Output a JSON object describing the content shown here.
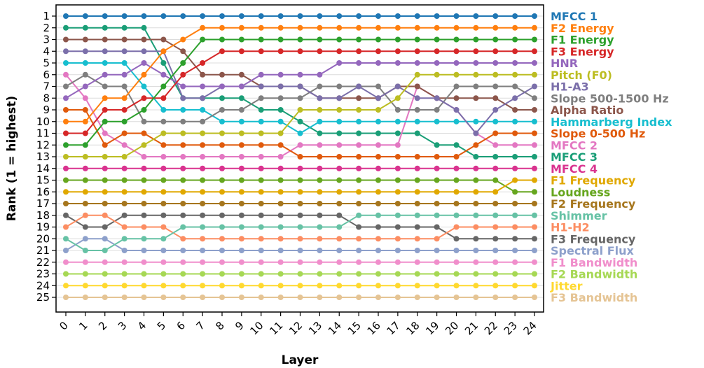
{
  "chart_data": {
    "type": "line",
    "title": "",
    "xlabel": "Layer",
    "ylabel": "Rank (1 = highest)",
    "x": [
      0,
      1,
      2,
      3,
      4,
      5,
      6,
      7,
      8,
      9,
      10,
      11,
      12,
      13,
      14,
      15,
      16,
      17,
      18,
      19,
      20,
      21,
      22,
      23,
      24
    ],
    "xlim": [
      0,
      24
    ],
    "ylim": [
      1,
      25
    ],
    "y_inverted": true,
    "grid": "horizontal",
    "legend": "right, labels at final rank",
    "series": [
      {
        "name": "MFCC 1",
        "color": "#1f77b4",
        "values": [
          1,
          1,
          1,
          1,
          1,
          1,
          1,
          1,
          1,
          1,
          1,
          1,
          1,
          1,
          1,
          1,
          1,
          1,
          1,
          1,
          1,
          1,
          1,
          1,
          1
        ]
      },
      {
        "name": "F2 Energy",
        "color": "#ff7f0e",
        "values": [
          10,
          10,
          8,
          8,
          6,
          4,
          3,
          2,
          2,
          2,
          2,
          2,
          2,
          2,
          2,
          2,
          2,
          2,
          2,
          2,
          2,
          2,
          2,
          2,
          2
        ]
      },
      {
        "name": "F1 Energy",
        "color": "#2ca02c",
        "values": [
          12,
          12,
          10,
          10,
          9,
          7,
          5,
          3,
          3,
          3,
          3,
          3,
          3,
          3,
          3,
          3,
          3,
          3,
          3,
          3,
          3,
          3,
          3,
          3,
          3
        ]
      },
      {
        "name": "F3 Energy",
        "color": "#d62728",
        "values": [
          11,
          11,
          9,
          9,
          8,
          8,
          6,
          5,
          4,
          4,
          4,
          4,
          4,
          4,
          4,
          4,
          4,
          4,
          4,
          4,
          4,
          4,
          4,
          4,
          4
        ]
      },
      {
        "name": "HNR",
        "color": "#9467bd",
        "values": [
          8,
          7,
          6,
          6,
          5,
          6,
          7,
          7,
          7,
          7,
          6,
          6,
          6,
          6,
          5,
          5,
          5,
          5,
          5,
          5,
          5,
          5,
          5,
          5,
          5
        ]
      },
      {
        "name": "Pitch (F0)",
        "color": "#bcbd22",
        "values": [
          13,
          13,
          13,
          13,
          12,
          11,
          11,
          11,
          11,
          11,
          11,
          11,
          9,
          9,
          9,
          9,
          9,
          8,
          6,
          6,
          6,
          6,
          6,
          6,
          6
        ]
      },
      {
        "name": "H1-A3",
        "color": "#7b6faa",
        "values": [
          4,
          4,
          4,
          4,
          4,
          4,
          8,
          8,
          7,
          7,
          7,
          7,
          7,
          8,
          8,
          7,
          8,
          7,
          8,
          8,
          9,
          11,
          9,
          8,
          7
        ]
      },
      {
        "name": "Slope 500-1500 Hz",
        "color": "#7f7f7f",
        "values": [
          7,
          6,
          7,
          7,
          10,
          10,
          10,
          10,
          9,
          9,
          8,
          8,
          8,
          7,
          7,
          7,
          7,
          9,
          9,
          9,
          7,
          7,
          7,
          7,
          8
        ]
      },
      {
        "name": "Alpha Ratio",
        "color": "#8c564b",
        "values": [
          3,
          3,
          3,
          3,
          3,
          3,
          4,
          6,
          6,
          6,
          7,
          7,
          7,
          8,
          8,
          8,
          8,
          7,
          7,
          8,
          8,
          8,
          8,
          9,
          9
        ]
      },
      {
        "name": "Hammarberg Index",
        "color": "#17becf",
        "values": [
          5,
          5,
          5,
          5,
          7,
          9,
          9,
          9,
          10,
          10,
          10,
          10,
          11,
          10,
          10,
          10,
          10,
          10,
          10,
          10,
          10,
          10,
          10,
          10,
          10
        ]
      },
      {
        "name": "Slope 0-500 Hz",
        "color": "#e05a0c",
        "values": [
          9,
          9,
          12,
          11,
          11,
          12,
          12,
          12,
          12,
          12,
          12,
          12,
          13,
          13,
          13,
          13,
          13,
          13,
          13,
          13,
          13,
          12,
          11,
          11,
          11
        ]
      },
      {
        "name": "MFCC 2",
        "color": "#e377c2",
        "values": [
          6,
          8,
          11,
          12,
          13,
          13,
          13,
          13,
          13,
          13,
          13,
          13,
          12,
          12,
          12,
          12,
          12,
          12,
          7,
          8,
          9,
          11,
          12,
          12,
          12
        ]
      },
      {
        "name": "MFCC 3",
        "color": "#1a9e77",
        "values": [
          2,
          2,
          2,
          2,
          2,
          5,
          8,
          8,
          8,
          8,
          9,
          9,
          10,
          11,
          11,
          11,
          11,
          11,
          11,
          12,
          12,
          13,
          13,
          13,
          13
        ]
      },
      {
        "name": "MFCC 4",
        "color": "#d9338f",
        "values": [
          14,
          14,
          14,
          14,
          14,
          14,
          14,
          14,
          14,
          14,
          14,
          14,
          14,
          14,
          14,
          14,
          14,
          14,
          14,
          14,
          14,
          14,
          14,
          14,
          14
        ]
      },
      {
        "name": "F1 Frequency",
        "color": "#e0a800",
        "values": [
          16,
          16,
          16,
          16,
          16,
          16,
          16,
          16,
          16,
          16,
          16,
          16,
          16,
          16,
          16,
          16,
          16,
          16,
          16,
          16,
          16,
          16,
          16,
          15,
          15
        ]
      },
      {
        "name": "Loudness",
        "color": "#66a61e",
        "values": [
          15,
          15,
          15,
          15,
          15,
          15,
          15,
          15,
          15,
          15,
          15,
          15,
          15,
          15,
          15,
          15,
          15,
          15,
          15,
          15,
          15,
          15,
          15,
          16,
          16
        ]
      },
      {
        "name": "F2 Frequency",
        "color": "#a6761d",
        "values": [
          17,
          17,
          17,
          17,
          17,
          17,
          17,
          17,
          17,
          17,
          17,
          17,
          17,
          17,
          17,
          17,
          17,
          17,
          17,
          17,
          17,
          17,
          17,
          17,
          17
        ]
      },
      {
        "name": "Shimmer",
        "color": "#66c2a5",
        "values": [
          20,
          21,
          21,
          20,
          20,
          20,
          19,
          19,
          19,
          19,
          19,
          19,
          19,
          19,
          19,
          18,
          18,
          18,
          18,
          18,
          18,
          18,
          18,
          18,
          18
        ]
      },
      {
        "name": "H1-H2",
        "color": "#fc8d62",
        "values": [
          19,
          18,
          18,
          19,
          19,
          19,
          20,
          20,
          20,
          20,
          20,
          20,
          20,
          20,
          20,
          20,
          20,
          20,
          20,
          20,
          19,
          19,
          19,
          19,
          19
        ]
      },
      {
        "name": "F3 Frequency",
        "color": "#666666",
        "values": [
          18,
          19,
          19,
          18,
          18,
          18,
          18,
          18,
          18,
          18,
          18,
          18,
          18,
          18,
          18,
          19,
          19,
          19,
          19,
          19,
          20,
          20,
          20,
          20,
          20
        ]
      },
      {
        "name": "Spectral Flux",
        "color": "#8da0cb",
        "values": [
          21,
          20,
          20,
          21,
          21,
          21,
          21,
          21,
          21,
          21,
          21,
          21,
          21,
          21,
          21,
          21,
          21,
          21,
          21,
          21,
          21,
          21,
          21,
          21,
          21
        ]
      },
      {
        "name": "F1 Bandwidth",
        "color": "#f08ecb",
        "values": [
          22,
          22,
          22,
          22,
          22,
          22,
          22,
          22,
          22,
          22,
          22,
          22,
          22,
          22,
          22,
          22,
          22,
          22,
          22,
          22,
          22,
          22,
          22,
          22,
          22
        ]
      },
      {
        "name": "F2 Bandwidth",
        "color": "#a6d854",
        "values": [
          23,
          23,
          23,
          23,
          23,
          23,
          23,
          23,
          23,
          23,
          23,
          23,
          23,
          23,
          23,
          23,
          23,
          23,
          23,
          23,
          23,
          23,
          23,
          23,
          23
        ]
      },
      {
        "name": "Jitter",
        "color": "#ffd92f",
        "values": [
          24,
          24,
          24,
          24,
          24,
          24,
          24,
          24,
          24,
          24,
          24,
          24,
          24,
          24,
          24,
          24,
          24,
          24,
          24,
          24,
          24,
          24,
          24,
          24,
          24
        ]
      },
      {
        "name": "F3 Bandwidth",
        "color": "#e5c494",
        "values": [
          25,
          25,
          25,
          25,
          25,
          25,
          25,
          25,
          25,
          25,
          25,
          25,
          25,
          25,
          25,
          25,
          25,
          25,
          25,
          25,
          25,
          25,
          25,
          25,
          25
        ]
      }
    ]
  }
}
